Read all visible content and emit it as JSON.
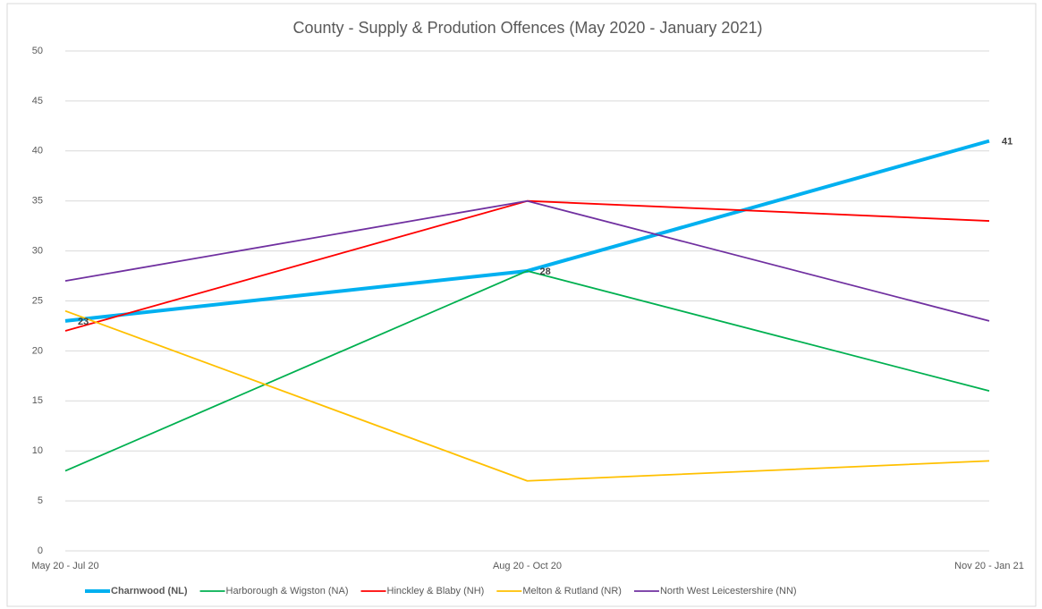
{
  "chart_data": {
    "type": "line",
    "title": "County - Supply & Prodution Offences (May 2020 - January 2021)",
    "categories": [
      "May 20 - Jul 20",
      "Aug 20 - Oct 20",
      "Nov 20 - Jan 21"
    ],
    "series": [
      {
        "name": "Charnwood (NL)",
        "color": "#00b0f0",
        "values": [
          23,
          28,
          41
        ],
        "data_labels": true
      },
      {
        "name": "Harborough & Wigston (NA)",
        "color": "#00b050",
        "values": [
          8,
          28,
          16
        ]
      },
      {
        "name": "Hinckley & Blaby (NH)",
        "color": "#ff0000",
        "values": [
          22,
          35,
          33
        ]
      },
      {
        "name": "Melton & Rutland (NR)",
        "color": "#ffc000",
        "values": [
          24,
          7,
          9
        ]
      },
      {
        "name": "North West Leicestershire (NN)",
        "color": "#7030a0",
        "values": [
          27,
          35,
          23
        ]
      }
    ],
    "ylim": [
      0,
      50
    ],
    "yticks": [
      0,
      5,
      10,
      15,
      20,
      25,
      30,
      35,
      40,
      45,
      50
    ],
    "grid": true,
    "legend": "bottom"
  }
}
